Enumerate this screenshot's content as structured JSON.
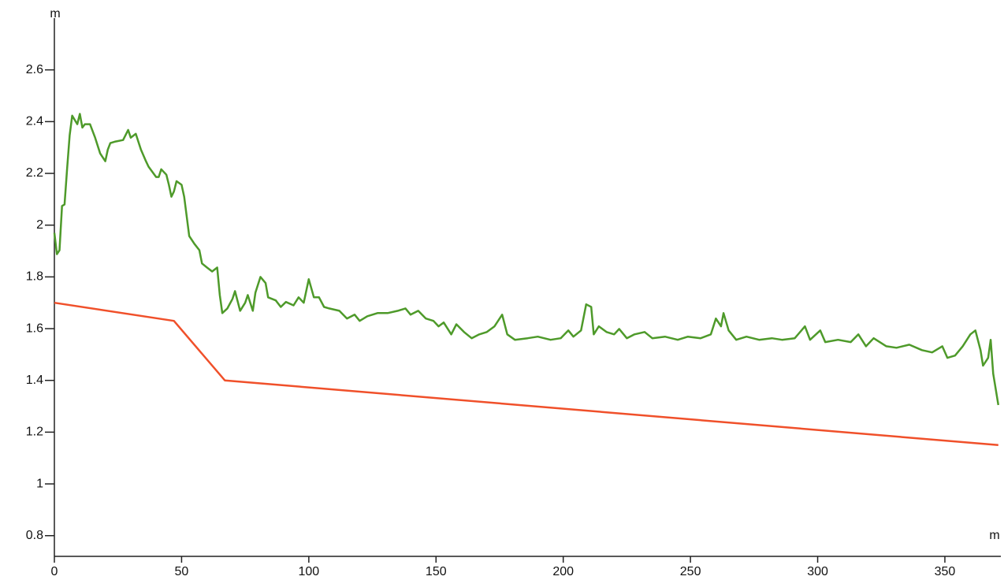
{
  "chart_data": {
    "type": "line",
    "y_label": "m",
    "x_label": "m",
    "xlim": [
      0,
      372
    ],
    "ylim": [
      0.72,
      2.8
    ],
    "xticks": [
      0,
      50,
      100,
      150,
      200,
      250,
      300,
      350
    ],
    "yticks": [
      0.8,
      1,
      1.2,
      1.4,
      1.6,
      1.8,
      2,
      2.2,
      2.4,
      2.6
    ],
    "series": [
      {
        "color": "#4e9a2a",
        "x": [
          0,
          1,
          2,
          3,
          4,
          5,
          6,
          7,
          9,
          10,
          11,
          12,
          14,
          16,
          18,
          20,
          21,
          22,
          24,
          27,
          29,
          30,
          32,
          34,
          36,
          37,
          40,
          41,
          42,
          44,
          45,
          46,
          47,
          48,
          50,
          51,
          52,
          53,
          55,
          57,
          58,
          60,
          62,
          64,
          65,
          66,
          68,
          70,
          71,
          73,
          75,
          76,
          78,
          79,
          81,
          83,
          84,
          87,
          89,
          91,
          94,
          96,
          98,
          100,
          102,
          104,
          106,
          108,
          112,
          115,
          118,
          120,
          123,
          127,
          131,
          135,
          138,
          140,
          143,
          146,
          149,
          151,
          153,
          156,
          158,
          161,
          164,
          167,
          170,
          173,
          176,
          178,
          181,
          186,
          190,
          195,
          199,
          202,
          204,
          207,
          209,
          211,
          212,
          214,
          217,
          220,
          222,
          225,
          228,
          232,
          235,
          240,
          245,
          249,
          254,
          258,
          260,
          262,
          263,
          265,
          268,
          272,
          277,
          282,
          286,
          291,
          295,
          297,
          301,
          303,
          308,
          313,
          316,
          319,
          322,
          327,
          331,
          336,
          341,
          345,
          349,
          351,
          354,
          357,
          360,
          362,
          364,
          365,
          367,
          368,
          369,
          371
        ],
        "values": [
          1.97,
          1.888,
          1.903,
          2.074,
          2.08,
          2.216,
          2.347,
          2.423,
          2.39,
          2.43,
          2.377,
          2.39,
          2.39,
          2.338,
          2.277,
          2.247,
          2.292,
          2.317,
          2.323,
          2.329,
          2.368,
          2.338,
          2.353,
          2.292,
          2.247,
          2.226,
          2.186,
          2.186,
          2.216,
          2.195,
          2.156,
          2.11,
          2.13,
          2.17,
          2.156,
          2.11,
          2.034,
          1.958,
          1.928,
          1.903,
          1.852,
          1.836,
          1.821,
          1.836,
          1.73,
          1.66,
          1.678,
          1.715,
          1.745,
          1.669,
          1.7,
          1.73,
          1.669,
          1.739,
          1.8,
          1.776,
          1.721,
          1.709,
          1.684,
          1.703,
          1.69,
          1.721,
          1.7,
          1.791,
          1.721,
          1.721,
          1.684,
          1.678,
          1.669,
          1.639,
          1.654,
          1.63,
          1.648,
          1.66,
          1.66,
          1.669,
          1.678,
          1.654,
          1.669,
          1.639,
          1.63,
          1.609,
          1.624,
          1.578,
          1.617,
          1.587,
          1.563,
          1.578,
          1.587,
          1.609,
          1.654,
          1.578,
          1.557,
          1.563,
          1.569,
          1.557,
          1.563,
          1.593,
          1.569,
          1.593,
          1.694,
          1.684,
          1.578,
          1.609,
          1.587,
          1.578,
          1.599,
          1.563,
          1.578,
          1.587,
          1.563,
          1.569,
          1.557,
          1.569,
          1.563,
          1.578,
          1.639,
          1.609,
          1.66,
          1.593,
          1.557,
          1.569,
          1.557,
          1.563,
          1.557,
          1.563,
          1.609,
          1.557,
          1.593,
          1.548,
          1.557,
          1.548,
          1.578,
          1.532,
          1.563,
          1.532,
          1.526,
          1.538,
          1.517,
          1.508,
          1.532,
          1.487,
          1.496,
          1.532,
          1.578,
          1.593,
          1.517,
          1.457,
          1.487,
          1.557,
          1.426,
          1.305
        ]
      },
      {
        "color": "#f0502a",
        "x": [
          0,
          47,
          67,
          371
        ],
        "values": [
          1.7,
          1.63,
          1.4,
          1.15
        ]
      }
    ]
  }
}
